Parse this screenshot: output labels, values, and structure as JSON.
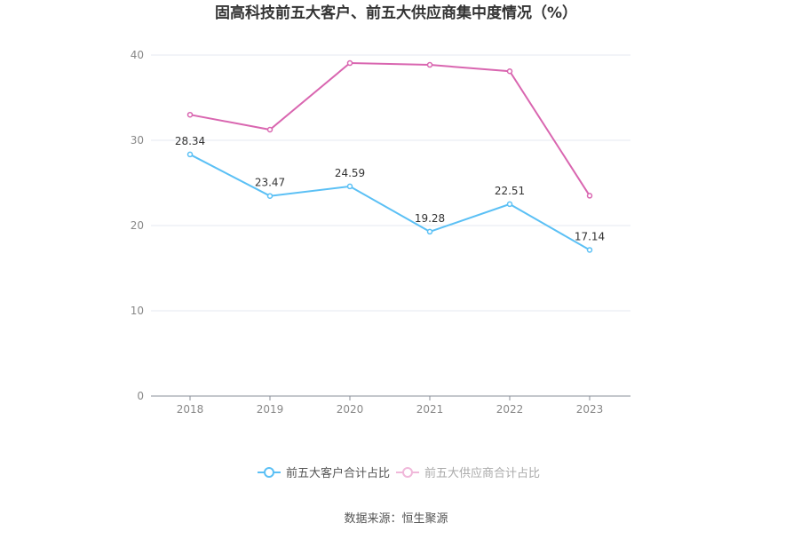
{
  "chart_data": {
    "type": "line",
    "title": "固高科技前五大客户、前五大供应商集中度情况（%）",
    "categories": [
      "2018",
      "2019",
      "2020",
      "2021",
      "2022",
      "2023"
    ],
    "ylim": [
      0,
      40
    ],
    "yticks": [
      0,
      10,
      20,
      30,
      40
    ],
    "grid": true,
    "legend_position": "bottom",
    "series": [
      {
        "name": "前五大客户合计占比",
        "color": "#5bc0f5",
        "values": [
          28.34,
          23.47,
          24.59,
          19.28,
          22.51,
          17.14
        ],
        "labels": [
          "28.34",
          "23.47",
          "24.59",
          "19.28",
          "22.51",
          "17.14"
        ],
        "legend_faded": false
      },
      {
        "name": "前五大供应商合计占比",
        "color": "#d966b0",
        "values": [
          33.0,
          31.25,
          39.06,
          38.85,
          38.1,
          23.5
        ],
        "labels": [],
        "legend_faded": true
      }
    ],
    "source": "数据来源：恒生聚源"
  }
}
